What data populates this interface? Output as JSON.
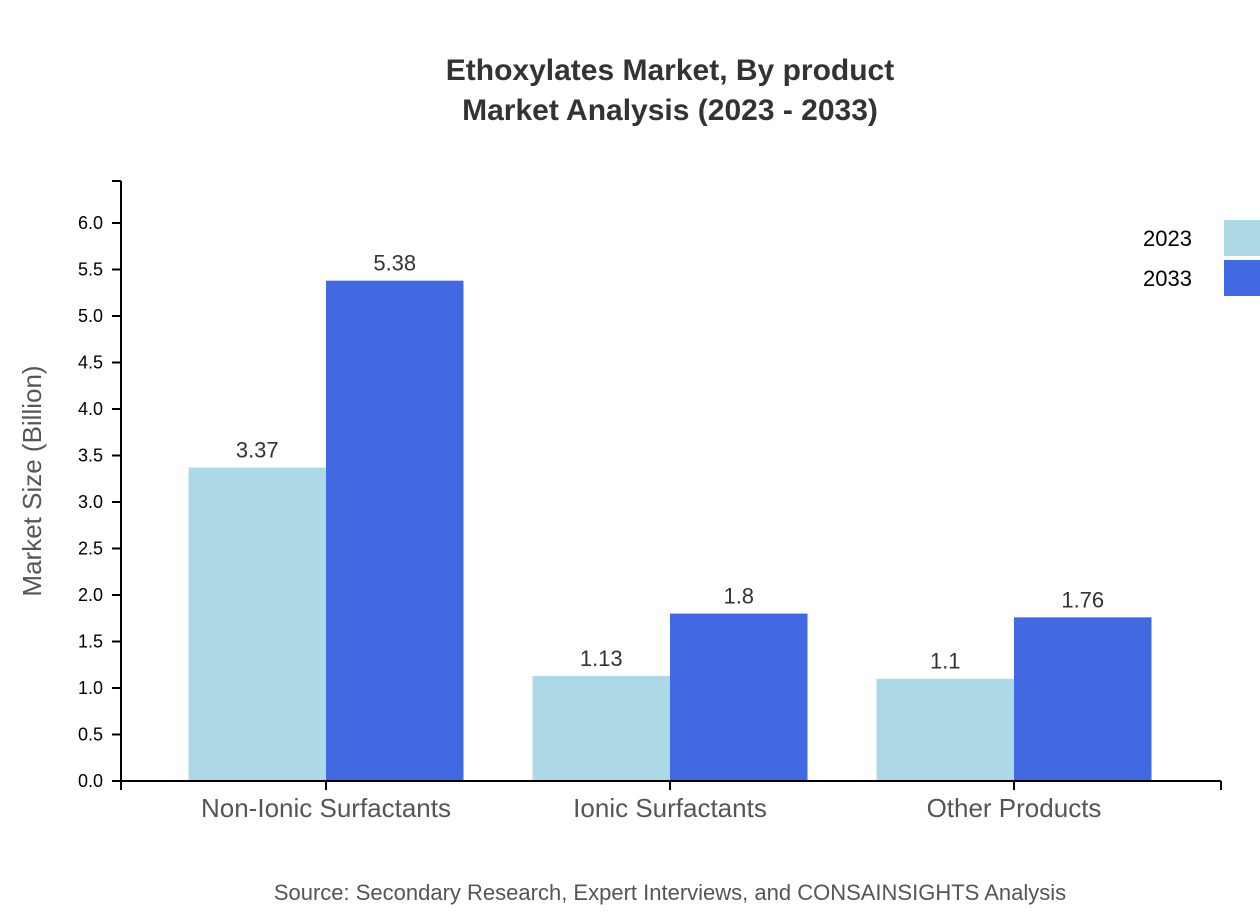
{
  "chart_data": {
    "type": "bar",
    "title": "Ethoxylates Market, By product",
    "subtitle": "Market Analysis (2023 - 2033)",
    "xlabel": "",
    "ylabel": "Market Size (Billion)",
    "ylim": [
      0,
      6.45
    ],
    "yticks": [
      "0.0",
      "0.5",
      "1.0",
      "1.5",
      "2.0",
      "2.5",
      "3.0",
      "3.5",
      "4.0",
      "4.5",
      "5.0",
      "5.5",
      "6.0"
    ],
    "categories": [
      "Non-Ionic Surfactants",
      "Ionic Surfactants",
      "Other Products"
    ],
    "series": [
      {
        "name": "2023",
        "color": "#add8e6",
        "values": [
          3.37,
          1.13,
          1.1
        ]
      },
      {
        "name": "2033",
        "color": "#4169e1",
        "values": [
          5.38,
          1.8,
          1.76
        ]
      }
    ],
    "grid": false,
    "legend": "top-right",
    "source": "Source: Secondary Research, Expert Interviews, and CONSAINSIGHTS Analysis"
  }
}
